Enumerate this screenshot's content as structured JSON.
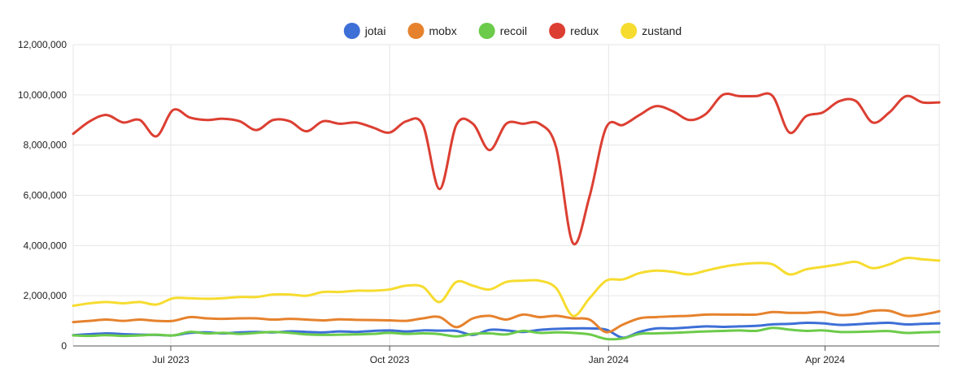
{
  "chart_data": {
    "type": "line",
    "title": "",
    "xlabel": "",
    "ylabel": "",
    "x": [
      "2023-05-21",
      "2023-05-28",
      "2023-06-04",
      "2023-06-11",
      "2023-06-18",
      "2023-06-25",
      "2023-07-02",
      "2023-07-09",
      "2023-07-16",
      "2023-07-23",
      "2023-07-30",
      "2023-08-06",
      "2023-08-13",
      "2023-08-20",
      "2023-08-27",
      "2023-09-03",
      "2023-09-10",
      "2023-09-17",
      "2023-09-24",
      "2023-10-01",
      "2023-10-08",
      "2023-10-15",
      "2023-10-22",
      "2023-10-29",
      "2023-11-05",
      "2023-11-12",
      "2023-11-19",
      "2023-11-26",
      "2023-12-03",
      "2023-12-10",
      "2023-12-17",
      "2023-12-24",
      "2023-12-31",
      "2024-01-07",
      "2024-01-14",
      "2024-01-21",
      "2024-01-28",
      "2024-02-04",
      "2024-02-11",
      "2024-02-18",
      "2024-02-25",
      "2024-03-03",
      "2024-03-10",
      "2024-03-17",
      "2024-03-24",
      "2024-03-31",
      "2024-04-07",
      "2024-04-14",
      "2024-04-21",
      "2024-04-28",
      "2024-05-05",
      "2024-05-12",
      "2024-05-19"
    ],
    "xlim": [
      "2023-05-21",
      "2024-05-19"
    ],
    "x_ticks": [
      {
        "label": "Jul 2023",
        "date": "2023-07-01"
      },
      {
        "label": "Oct 2023",
        "date": "2023-10-01"
      },
      {
        "label": "Jan 2024",
        "date": "2024-01-01"
      },
      {
        "label": "Apr 2024",
        "date": "2024-04-01"
      }
    ],
    "ylim": [
      0,
      12000000
    ],
    "y_ticks": [
      0,
      2000000,
      4000000,
      6000000,
      8000000,
      10000000,
      12000000
    ],
    "y_tick_labels": [
      "0",
      "2,000,000",
      "4,000,000",
      "6,000,000",
      "8,000,000",
      "10,000,000",
      "12,000,000"
    ],
    "grid": true,
    "legend_position": "top-center",
    "series": [
      {
        "name": "jotai",
        "color": "#3d6fd6",
        "values": [
          430000,
          470000,
          500000,
          470000,
          450000,
          440000,
          420000,
          520000,
          540000,
          500000,
          540000,
          560000,
          540000,
          580000,
          560000,
          540000,
          580000,
          560000,
          600000,
          620000,
          580000,
          620000,
          610000,
          600000,
          440000,
          640000,
          620000,
          560000,
          640000,
          680000,
          700000,
          700000,
          650000,
          330000,
          560000,
          700000,
          700000,
          740000,
          780000,
          760000,
          780000,
          800000,
          860000,
          880000,
          920000,
          900000,
          840000,
          860000,
          900000,
          920000,
          860000,
          880000,
          900000
        ]
      },
      {
        "name": "mobx",
        "color": "#e6822d",
        "values": [
          950000,
          1000000,
          1050000,
          1000000,
          1050000,
          1000000,
          1000000,
          1150000,
          1100000,
          1080000,
          1100000,
          1100000,
          1050000,
          1080000,
          1050000,
          1020000,
          1060000,
          1040000,
          1030000,
          1020000,
          1000000,
          1100000,
          1150000,
          750000,
          1100000,
          1200000,
          1050000,
          1250000,
          1150000,
          1200000,
          1100000,
          1050000,
          550000,
          850000,
          1100000,
          1150000,
          1180000,
          1200000,
          1250000,
          1250000,
          1250000,
          1250000,
          1350000,
          1320000,
          1320000,
          1350000,
          1230000,
          1260000,
          1400000,
          1400000,
          1200000,
          1250000,
          1380000
        ]
      },
      {
        "name": "recoil",
        "color": "#6ccb4a",
        "values": [
          420000,
          400000,
          430000,
          400000,
          420000,
          450000,
          420000,
          560000,
          500000,
          520000,
          480000,
          520000,
          560000,
          520000,
          460000,
          440000,
          450000,
          460000,
          480000,
          520000,
          480000,
          500000,
          470000,
          380000,
          480000,
          500000,
          460000,
          600000,
          520000,
          540000,
          520000,
          460000,
          280000,
          300000,
          480000,
          500000,
          520000,
          550000,
          580000,
          600000,
          620000,
          600000,
          720000,
          650000,
          600000,
          620000,
          560000,
          560000,
          580000,
          590000,
          520000,
          540000,
          560000
        ]
      },
      {
        "name": "redux",
        "color": "#dc3f32",
        "values": [
          8450000,
          8950000,
          9200000,
          8900000,
          9000000,
          8350000,
          9400000,
          9100000,
          9000000,
          9050000,
          8950000,
          8600000,
          9000000,
          8950000,
          8550000,
          8950000,
          8850000,
          8900000,
          8700000,
          8500000,
          8950000,
          8800000,
          6250000,
          8800000,
          8850000,
          7800000,
          8850000,
          8850000,
          8850000,
          7900000,
          4100000,
          5950000,
          8700000,
          8800000,
          9200000,
          9550000,
          9350000,
          9000000,
          9250000,
          10000000,
          9950000,
          9950000,
          9950000,
          8500000,
          9150000,
          9300000,
          9750000,
          9750000,
          8900000,
          9300000,
          9950000,
          9700000,
          9700000
        ]
      },
      {
        "name": "zustand",
        "color": "#f6dc2f",
        "values": [
          1600000,
          1700000,
          1750000,
          1700000,
          1750000,
          1650000,
          1900000,
          1900000,
          1880000,
          1900000,
          1950000,
          1950000,
          2050000,
          2050000,
          2000000,
          2150000,
          2150000,
          2200000,
          2200000,
          2250000,
          2400000,
          2350000,
          1750000,
          2550000,
          2400000,
          2250000,
          2550000,
          2600000,
          2600000,
          2300000,
          1200000,
          1900000,
          2600000,
          2650000,
          2900000,
          3000000,
          2950000,
          2850000,
          3000000,
          3150000,
          3250000,
          3300000,
          3250000,
          2850000,
          3050000,
          3150000,
          3250000,
          3350000,
          3100000,
          3250000,
          3500000,
          3450000,
          3400000
        ]
      }
    ]
  }
}
